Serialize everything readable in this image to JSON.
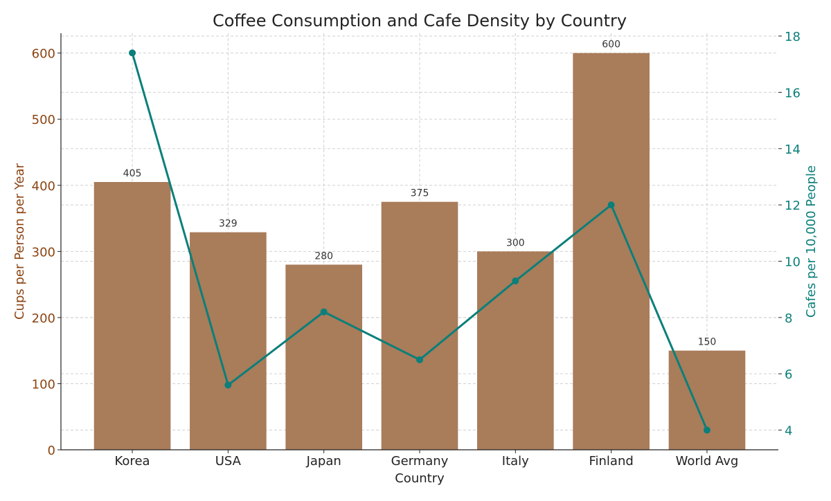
{
  "chart_data": {
    "type": "bar+line",
    "title": "Coffee Consumption and Cafe Density by Country",
    "xlabel": "Country",
    "ylabel": "Cups per Person per Year",
    "ylabel_right": "Cafes per 10,000 People",
    "categories": [
      "Korea",
      "USA",
      "Japan",
      "Germany",
      "Italy",
      "Finland",
      "World Avg"
    ],
    "series": [
      {
        "type": "bar",
        "axis": "left",
        "values": [
          405,
          329,
          280,
          375,
          300,
          600,
          150
        ],
        "color": "#A97C5A"
      },
      {
        "type": "line",
        "axis": "right",
        "values": [
          17.4,
          5.6,
          8.2,
          6.5,
          9.3,
          12.0,
          4.0
        ],
        "color": "#0B7F7A"
      }
    ],
    "ylim": [
      0,
      630
    ],
    "ylim_right": [
      3.3,
      18.1
    ],
    "yticks": [
      0,
      100,
      200,
      300,
      400,
      500,
      600
    ],
    "yticks_right": [
      4,
      6,
      8,
      10,
      12,
      14,
      16,
      18
    ],
    "left_axis_color": "#8B4513",
    "right_axis_color": "#0B7F7A",
    "grid": true,
    "bar_labels": true
  }
}
